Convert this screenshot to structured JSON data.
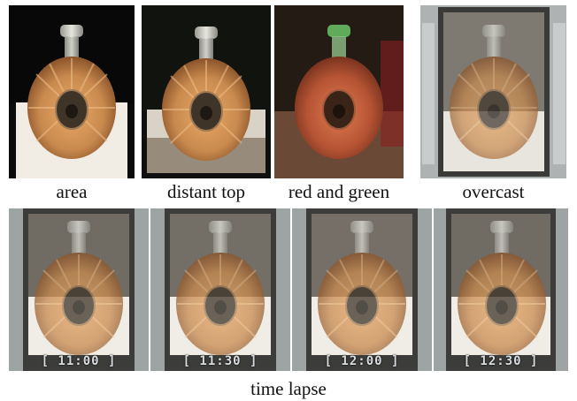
{
  "top_row": [
    {
      "caption": "area",
      "scene": "dark"
    },
    {
      "caption": "distant top",
      "scene": "dark-shadow"
    },
    {
      "caption": "red and green",
      "scene": "colored"
    },
    {
      "caption": "overcast",
      "scene": "building"
    }
  ],
  "bottom_row": [
    {
      "timestamp": "[ 11:00 ]"
    },
    {
      "timestamp": "[ 11:30 ]"
    },
    {
      "timestamp": "[ 12:00 ]"
    },
    {
      "timestamp": "[ 12:30 ]"
    }
  ],
  "bottom_caption": "time lapse",
  "colors": {
    "liquid": "#c98a4e",
    "liquid_dark": "#8a5127",
    "floor": "#f2ede4",
    "glass": "#d8d8d0",
    "backdrop_dark": "#0b0b0b",
    "building": "#b9bdbd"
  },
  "icons": {
    "object": "bottle-icon"
  }
}
